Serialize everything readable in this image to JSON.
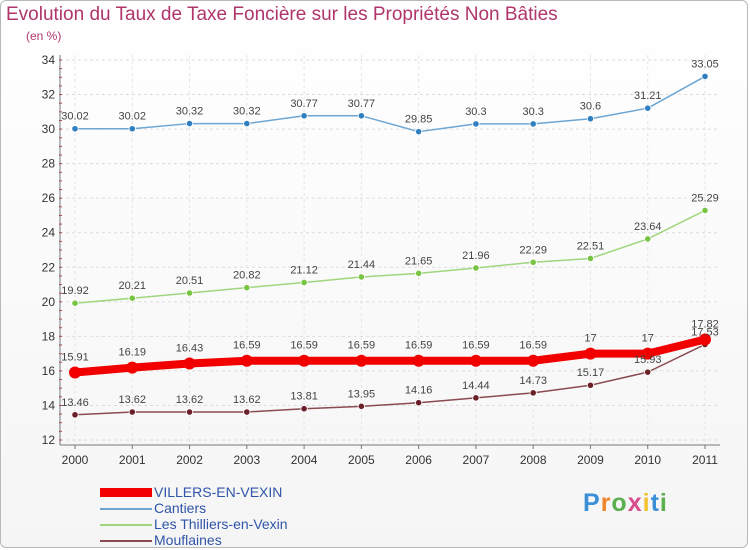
{
  "title": "Evolution du Taux de Taxe Foncière sur les Propriétés Non Bâties",
  "unit": "(en %)",
  "logo": {
    "text": "Proxiti",
    "letter_colors": [
      "#3b8fd6",
      "#f0842c",
      "#5ab04c",
      "#d94b8a",
      "#f2c230",
      "#3b8fd6",
      "#5ab04c"
    ]
  },
  "chart_data": {
    "type": "line",
    "x": [
      "2000",
      "2001",
      "2002",
      "2003",
      "2004",
      "2005",
      "2006",
      "2007",
      "2008",
      "2009",
      "2010",
      "2011"
    ],
    "ylim": [
      12,
      34
    ],
    "yticks": [
      12,
      14,
      16,
      18,
      20,
      22,
      24,
      26,
      28,
      30,
      32,
      34
    ],
    "grid": true,
    "legend_position": "bottom-left",
    "series": [
      {
        "name": "VILLERS-EN-VEXIN",
        "color": "#f20000",
        "marker_color": "#f20000",
        "emphasis": true,
        "values": [
          15.91,
          16.19,
          16.43,
          16.59,
          16.59,
          16.59,
          16.59,
          16.59,
          16.59,
          17,
          17,
          17.82
        ],
        "labels": [
          "15.91",
          "16.19",
          "16.43",
          "16.59",
          "16.59",
          "16.59",
          "16.59",
          "16.59",
          "16.59",
          "17",
          "17",
          "17.82"
        ]
      },
      {
        "name": "Cantiers",
        "color": "#6ea6d3",
        "marker_color": "#2f7fc1",
        "emphasis": false,
        "values": [
          30.02,
          30.02,
          30.32,
          30.32,
          30.77,
          30.77,
          29.85,
          30.3,
          30.3,
          30.6,
          31.21,
          33.05
        ],
        "labels": [
          "30.02",
          "30.02",
          "30.32",
          "30.32",
          "30.77",
          "30.77",
          "29.85",
          "30.3",
          "30.3",
          "30.6",
          "31.21",
          "33.05"
        ]
      },
      {
        "name": "Les Thilliers-en-Vexin",
        "color": "#9fd67e",
        "marker_color": "#79c442",
        "emphasis": false,
        "values": [
          19.92,
          20.21,
          20.51,
          20.82,
          21.12,
          21.44,
          21.65,
          21.96,
          22.29,
          22.51,
          23.64,
          25.29
        ],
        "labels": [
          "19.92",
          "20.21",
          "20.51",
          "20.82",
          "21.12",
          "21.44",
          "21.65",
          "21.96",
          "22.29",
          "22.51",
          "23.64",
          "25.29"
        ]
      },
      {
        "name": "Mouflaines",
        "color": "#8a4b52",
        "marker_color": "#6b1f27",
        "emphasis": false,
        "values": [
          13.46,
          13.62,
          13.62,
          13.62,
          13.81,
          13.95,
          14.16,
          14.44,
          14.73,
          15.17,
          15.93,
          17.53
        ],
        "labels": [
          "13.46",
          "13.62",
          "13.62",
          "13.62",
          "13.81",
          "13.95",
          "14.16",
          "14.44",
          "14.73",
          "15.17",
          "15.93",
          "17.53"
        ]
      }
    ]
  }
}
